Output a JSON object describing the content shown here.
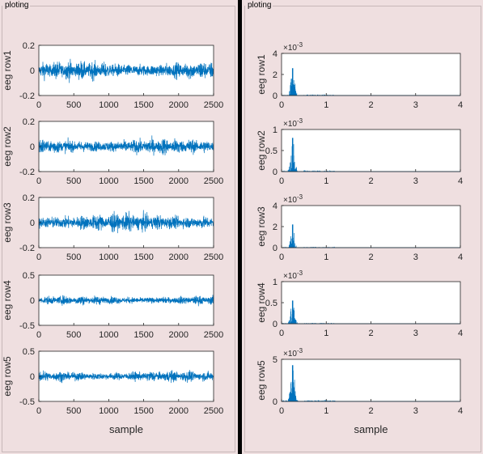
{
  "panels": [
    {
      "title": "ploting"
    },
    {
      "title": "ploting"
    }
  ],
  "chart_data": [
    {
      "type": "line",
      "panel": "left",
      "xlabel": "sample",
      "xlim": [
        0,
        2500
      ],
      "xticks": [
        "0",
        "500",
        "1000",
        "1500",
        "2000",
        "2500"
      ],
      "line_color": "#0072bd",
      "subplots": [
        {
          "ylabel": "eeg row1",
          "ylim": [
            -0.2,
            0.2
          ],
          "yticks": [
            "0.2",
            "0",
            "-0.2"
          ],
          "n_samples": 2500,
          "amplitude": 0.08
        },
        {
          "ylabel": "eeg row2",
          "ylim": [
            -0.2,
            0.2
          ],
          "yticks": [
            "0.2",
            "0",
            "-0.2"
          ],
          "n_samples": 2500,
          "amplitude": 0.07
        },
        {
          "ylabel": "eeg row3",
          "ylim": [
            -0.2,
            0.2
          ],
          "yticks": [
            "0.2",
            "0",
            "-0.2"
          ],
          "n_samples": 2500,
          "amplitude": 0.08
        },
        {
          "ylabel": "eeg row4",
          "ylim": [
            -0.5,
            0.5
          ],
          "yticks": [
            "0.5",
            "0",
            "-0.5"
          ],
          "n_samples": 2500,
          "amplitude": 0.1
        },
        {
          "ylabel": "eeg row5",
          "ylim": [
            -0.5,
            0.5
          ],
          "yticks": [
            "0.5",
            "0",
            "-0.5"
          ],
          "n_samples": 2500,
          "amplitude": 0.12
        }
      ]
    },
    {
      "type": "line",
      "panel": "right",
      "xlabel": "sample",
      "xlim": [
        0,
        4
      ],
      "xticks": [
        "0",
        "1",
        "2",
        "3",
        "4"
      ],
      "line_color": "#0072bd",
      "subplots": [
        {
          "ylabel": "eeg row1",
          "ylim": [
            0,
            4
          ],
          "yticks": [
            "4",
            "2",
            "0"
          ],
          "exponent": "-3",
          "peak": 2.6
        },
        {
          "ylabel": "eeg row2",
          "ylim": [
            0,
            1
          ],
          "yticks": [
            "1",
            "0.5",
            "0"
          ],
          "exponent": "-3",
          "peak": 0.8
        },
        {
          "ylabel": "eeg row3",
          "ylim": [
            0,
            4
          ],
          "yticks": [
            "4",
            "2",
            "0"
          ],
          "exponent": "-3",
          "peak": 2.2
        },
        {
          "ylabel": "eeg row4",
          "ylim": [
            0,
            1
          ],
          "yticks": [
            "1",
            "0.5",
            "0"
          ],
          "exponent": "-3",
          "peak": 0.55
        },
        {
          "ylabel": "eeg row5",
          "ylim": [
            0,
            5
          ],
          "yticks": [
            "5",
            "0"
          ],
          "exponent": "-3",
          "peak": 4.3
        }
      ]
    }
  ]
}
